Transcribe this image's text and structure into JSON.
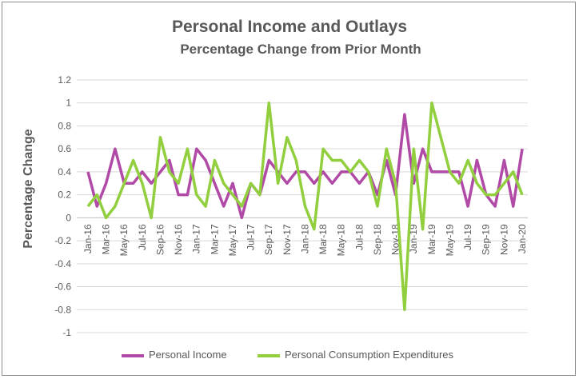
{
  "chart_data": {
    "type": "line",
    "title": "Personal Income and Outlays",
    "subtitle": "Percentage Change from Prior Month",
    "xlabel": "",
    "ylabel": "Percentage Change",
    "ylim": [
      -1,
      1.2
    ],
    "yticks": [
      "1.2",
      "1",
      "0.8",
      "0.6",
      "0.4",
      "0.2",
      "0",
      "-0.2",
      "-0.4",
      "-0.6",
      "-0.8",
      "-1"
    ],
    "categories": [
      "Jan-16",
      "Feb-16",
      "Mar-16",
      "Apr-16",
      "May-16",
      "Jun-16",
      "Jul-16",
      "Aug-16",
      "Sep-16",
      "Oct-16",
      "Nov-16",
      "Dec-16",
      "Jan-17",
      "Feb-17",
      "Mar-17",
      "Apr-17",
      "May-17",
      "Jun-17",
      "Jul-17",
      "Aug-17",
      "Sep-17",
      "Oct-17",
      "Nov-17",
      "Dec-17",
      "Jan-18",
      "Feb-18",
      "Mar-18",
      "Apr-18",
      "May-18",
      "Jun-18",
      "Jul-18",
      "Aug-18",
      "Sep-18",
      "Oct-18",
      "Nov-18",
      "Dec-18",
      "Jan-19",
      "Feb-19",
      "Mar-19",
      "Apr-19",
      "May-19",
      "Jun-19",
      "Jul-19",
      "Aug-19",
      "Sep-19",
      "Oct-19",
      "Nov-19",
      "Dec-19",
      "Jan-20"
    ],
    "xticklabels": [
      "Jan-16",
      "Mar-16",
      "May-16",
      "Jul-16",
      "Sep-16",
      "Nov-16",
      "Jan-17",
      "Mar-17",
      "May-17",
      "Jul-17",
      "Sep-17",
      "Nov-17",
      "Jan-18",
      "Mar-18",
      "May-18",
      "Jul-18",
      "Sep-18",
      "Nov-18",
      "Jan-19",
      "Mar-19",
      "May-19",
      "Jul-19",
      "Sep-19",
      "Nov-19",
      "Jan-20"
    ],
    "grid": true,
    "legend": "bottom",
    "series": [
      {
        "name": "Personal Income",
        "color": "#b04aa6",
        "values": [
          0.4,
          0.1,
          0.3,
          0.6,
          0.3,
          0.3,
          0.4,
          0.3,
          0.4,
          0.5,
          0.2,
          0.2,
          0.6,
          0.5,
          0.3,
          0.1,
          0.3,
          0.0,
          0.3,
          0.2,
          0.5,
          0.4,
          0.3,
          0.4,
          0.4,
          0.3,
          0.4,
          0.3,
          0.4,
          0.4,
          0.3,
          0.4,
          0.2,
          0.5,
          0.2,
          0.9,
          0.3,
          0.6,
          0.4,
          0.4,
          0.4,
          0.4,
          0.1,
          0.5,
          0.2,
          0.1,
          0.5,
          0.1,
          0.6
        ]
      },
      {
        "name": "Personal Consumption Expenditures",
        "color": "#92cf3f",
        "values": [
          0.1,
          0.2,
          0.0,
          0.1,
          0.3,
          0.5,
          0.3,
          0.0,
          0.7,
          0.4,
          0.3,
          0.6,
          0.2,
          0.1,
          0.5,
          0.3,
          0.2,
          0.1,
          0.3,
          0.2,
          1.0,
          0.3,
          0.7,
          0.5,
          0.1,
          -0.1,
          0.6,
          0.5,
          0.5,
          0.4,
          0.5,
          0.4,
          0.1,
          0.6,
          0.3,
          -0.8,
          0.6,
          -0.1,
          1.0,
          0.7,
          0.4,
          0.3,
          0.5,
          0.3,
          0.2,
          0.2,
          0.3,
          0.4,
          0.2
        ]
      }
    ]
  }
}
